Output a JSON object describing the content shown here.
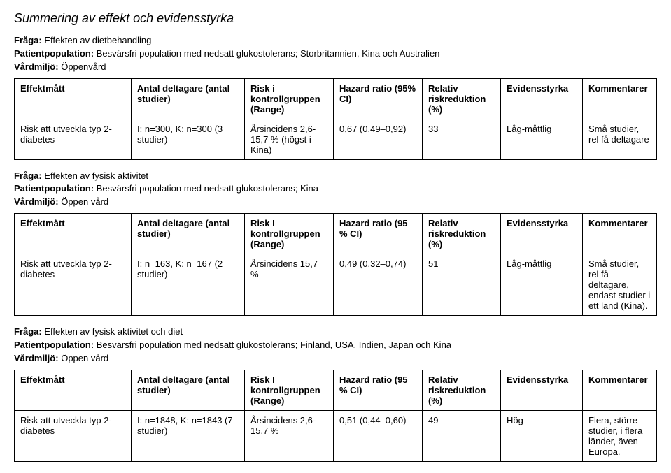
{
  "title": "Summering av effekt och evidensstyrka",
  "sections": [
    {
      "question": {
        "label": "Fråga:",
        "text": "Effekten av dietbehandling"
      },
      "population": {
        "label": "Patientpopulation:",
        "text": "Besvärsfri population med nedsatt glukostolerans; Storbritannien, Kina och Australien"
      },
      "setting": {
        "label": "Vårdmiljö:",
        "text": "Öppenvård"
      },
      "headers": {
        "c1": "Effektmått",
        "c2": "Antal deltagare (antal studier)",
        "c3": "Risk i kontrollgruppen (Range)",
        "c4": "Hazard ratio (95% CI)",
        "c5": "Relativ riskreduktion (%)",
        "c6": "Evidensstyrka",
        "c7": "Kommentarer"
      },
      "row": {
        "c1": "Risk att utveckla typ 2-diabetes",
        "c2": "I: n=300, K: n=300 (3 studier)",
        "c3": "Årsincidens 2,6-15,7 % (högst i Kina)",
        "c4": "0,67 (0,49–0,92)",
        "c5": "33",
        "c6": "Låg-måttlig",
        "c7": "Små studier, rel få deltagare"
      }
    },
    {
      "question": {
        "label": "Fråga:",
        "text": "Effekten av fysisk aktivitet"
      },
      "population": {
        "label": "Patientpopulation:",
        "text": "Besvärsfri population med nedsatt glukostolerans; Kina"
      },
      "setting": {
        "label": "Vårdmiljö:",
        "text": "Öppen vård"
      },
      "headers": {
        "c1": "Effektmått",
        "c2": "Antal deltagare (antal studier)",
        "c3": "Risk I kontrollgruppen (Range)",
        "c4": "Hazard ratio (95 % CI)",
        "c5": "Relativ riskreduktion (%)",
        "c6": "Evidensstyrka",
        "c7": "Kommentarer"
      },
      "row": {
        "c1": "Risk att utveckla typ 2-diabetes",
        "c2": "I: n=163, K: n=167 (2 studier)",
        "c3": "Årsincidens 15,7 %",
        "c4": "0,49 (0,32–0,74)",
        "c5": "51",
        "c6": "Låg-måttlig",
        "c7": "Små studier, rel få deltagare, endast studier i ett land (Kina)."
      }
    },
    {
      "question": {
        "label": "Fråga:",
        "text": "Effekten av fysisk aktivitet och diet"
      },
      "population": {
        "label": "Patientpopulation:",
        "text": "Besvärsfri population med nedsatt glukostolerans; Finland, USA, Indien, Japan och Kina"
      },
      "setting": {
        "label": "Vårdmiljö:",
        "text": "Öppen vård"
      },
      "headers": {
        "c1": "Effektmått",
        "c2": "Antal deltagare (antal studier)",
        "c3": "Risk I kontrollgruppen (Range)",
        "c4": "Hazard ratio (95 % CI)",
        "c5": "Relativ riskreduktion (%)",
        "c6": "Evidensstyrka",
        "c7": "Kommentarer"
      },
      "row": {
        "c1": "Risk att utveckla typ 2-diabetes",
        "c2": "I: n=1848, K: n=1843 (7 studier)",
        "c3": "Årsincidens 2,6-15,7 %",
        "c4": "0,51 (0,44–0,60)",
        "c5": "49",
        "c6": "Hög",
        "c7": "Flera, större studier, i flera länder, även Europa."
      }
    }
  ]
}
